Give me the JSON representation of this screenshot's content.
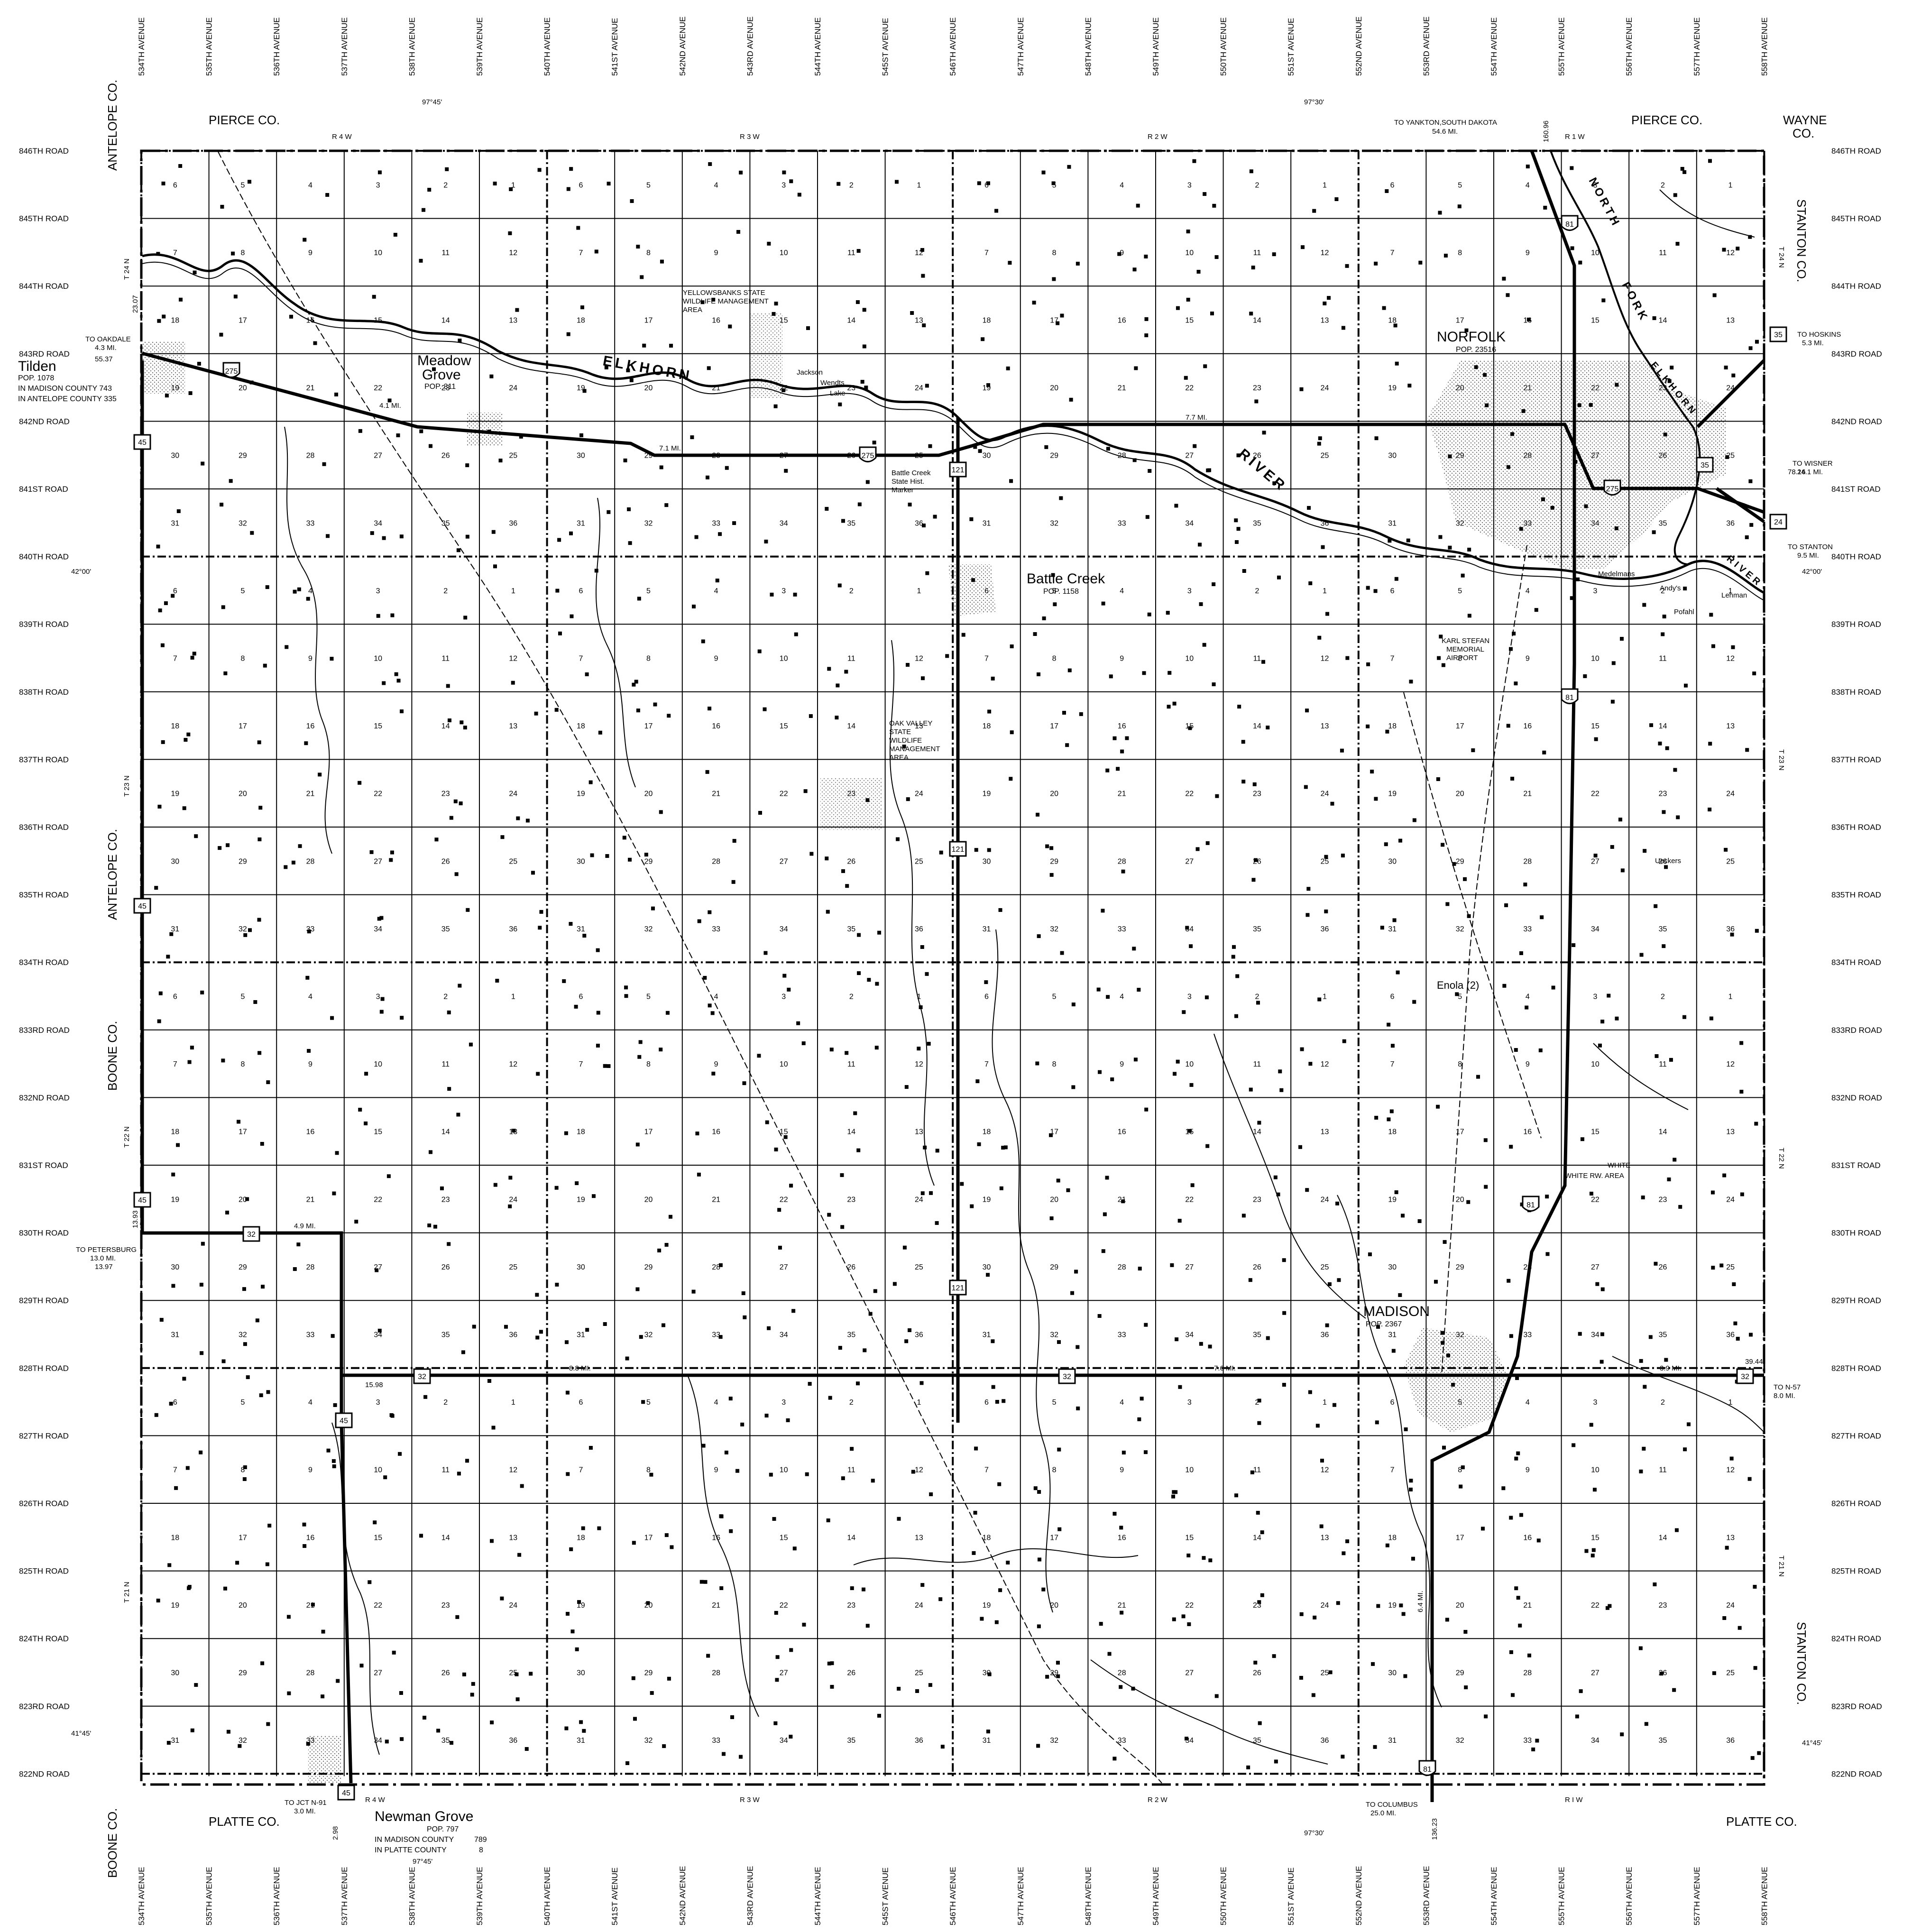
{
  "avenues": [
    "534TH AVENUE",
    "535TH AVENUE",
    "536TH AVENUE",
    "537TH AVENUE",
    "538TH AVENUE",
    "539TH AVENUE",
    "540TH AVENUE",
    "541ST AVENUE",
    "542ND AVENUE",
    "543RD AVENUE",
    "544TH AVENUE",
    "545ST AVENUE",
    "546TH AVENUE",
    "547TH AVENUE",
    "548TH AVENUE",
    "549TH AVENUE",
    "550TH AVENUE",
    "551ST AVENUE",
    "552ND AVENUE",
    "553RD AVENUE",
    "554TH AVENUE",
    "555TH AVENUE",
    "556TH AVENUE",
    "557TH AVENUE",
    "558TH AVENUE"
  ],
  "roads": [
    "846TH ROAD",
    "845TH ROAD",
    "844TH ROAD",
    "843RD ROAD",
    "842ND ROAD",
    "841ST ROAD",
    "840TH ROAD",
    "839TH ROAD",
    "838TH ROAD",
    "837TH ROAD",
    "836TH ROAD",
    "835TH ROAD",
    "834TH ROAD",
    "833RD ROAD",
    "832ND ROAD",
    "831ST ROAD",
    "830TH ROAD",
    "829TH ROAD",
    "828TH ROAD",
    "827TH ROAD",
    "826TH ROAD",
    "825TH ROAD",
    "824TH ROAD",
    "823RD ROAD",
    "822ND ROAD"
  ],
  "sections_odd_row": [
    "6",
    "5",
    "4",
    "3",
    "2",
    "1"
  ],
  "sections_rows": [
    [
      "6",
      "5",
      "4",
      "3",
      "2",
      "1"
    ],
    [
      "7",
      "8",
      "9",
      "10",
      "11",
      "12"
    ],
    [
      "18",
      "17",
      "16",
      "15",
      "14",
      "13"
    ],
    [
      "19",
      "20",
      "21",
      "22",
      "23",
      "24"
    ],
    [
      "30",
      "29",
      "28",
      "27",
      "26",
      "25"
    ],
    [
      "31",
      "32",
      "33",
      "34",
      "35",
      "36"
    ]
  ],
  "counties": {
    "pierce_left": "PIERCE CO.",
    "pierce_right": "PIERCE CO.",
    "wayne": "WAYNE",
    "wayne_co": "CO.",
    "antelope_top": "ANTELOPE CO.",
    "antelope_mid": "ANTELOPE CO.",
    "boone_mid": "BOONE CO.",
    "boone_bot": "BOONE CO.",
    "stanton_top": "STANTON CO.",
    "stanton_bot": "STANTON CO.",
    "platte_left": "PLATTE CO.",
    "platte_right": "PLATTE CO."
  },
  "ranges": {
    "r4w_top": "R 4 W",
    "r3w_top": "R 3 W",
    "r2w_top": "R 2 W",
    "r1w_top": "R 1 W",
    "r4w_bot": "R 4 W",
    "r3w_bot": "R 3 W",
    "r2w_bot": "R 2 W",
    "r1w_bot": "R I W"
  },
  "townships": {
    "t24n_l": "T 24 N",
    "t23n_l": "T 23 N",
    "t22n_l": "T 22 N",
    "t21n_l": "T 21 N",
    "t24n_r": "T 24 N",
    "t23n_r": "T 23 N",
    "t22n_r": "T 22 N",
    "t21n_r": "T 21 N"
  },
  "coords": {
    "lon_9745_top": "97°45'",
    "lon_9730_top": "97°30'",
    "lat_4200_l": "42°00'",
    "lat_4200_r": "42°00'",
    "lat_4145_l": "41°45'",
    "lat_4145_r": "41°45'",
    "lon_9745_bot": "97°45'",
    "lon_9730_bot": "97°30'"
  },
  "towns": {
    "norfolk": {
      "name": "NORFOLK",
      "pop": "POP. 23516"
    },
    "battle_creek": {
      "name": "Battle Creek",
      "pop": "POP. 1158"
    },
    "madison": {
      "name": "MADISON",
      "pop": "POP. 2367"
    },
    "meadow_grove_1": "Meadow",
    "meadow_grove_2": "Grove",
    "meadow_grove_pop": "POP. 311",
    "tilden": "Tilden",
    "tilden_pop": "POP. 1078",
    "tilden_madison": "IN MADISON COUNTY 743",
    "tilden_antelope": "IN ANTELOPE COUNTY 335",
    "newman_grove": "Newman Grove",
    "newman_pop": "POP. 797",
    "newman_madison": "IN MADISON COUNTY",
    "newman_madison_val": "789",
    "newman_platte": "IN PLATTE COUNTY",
    "newman_platte_val": "8",
    "enola": "Enola (2)"
  },
  "rivers": {
    "elkhorn": "ELKHORN",
    "river": "RIVER",
    "north": "NORTH",
    "fork": "FORK",
    "elkhorn2": "ELKHORN",
    "river2": "RIVER"
  },
  "places": {
    "yellowbanks_1": "YELLOWSBANKS STATE",
    "yellowbanks_2": "WILDLIFE MANAGEMENT",
    "yellowbanks_3": "AREA",
    "oak_valley_1": "OAK VALLEY",
    "oak_valley_2": "STATE",
    "oak_valley_3": "WILDLIFE",
    "oak_valley_4": "MANAGEMENT",
    "oak_valley_5": "AREA",
    "airport_1": "KARL STEFAN",
    "airport_2": "MEMORIAL",
    "airport_3": "AIRPORT",
    "jackson_lake": "Jackson",
    "wendts_lake": "Wendts",
    "lake_word": "Lake",
    "battle_creek_hm1": "Battle Creek",
    "battle_creek_hm2": "State Hist.",
    "battle_creek_hm3": "Marker",
    "medelmans": "Medelmans",
    "andys": "Andy's",
    "lehman": "Lehman",
    "pofahl": "Pofahl",
    "ueckers": "Ueckers",
    "white": "WHITE",
    "white_rw": "WHITE RW. AREA"
  },
  "directions": {
    "yankton": "TO YANKTON,SOUTH DAKOTA",
    "yankton_mi": "54.6 MI.",
    "oakdale": "TO OAKDALE",
    "oakdale_mi": "4.3 MI.",
    "hoskins": "TO HOSKINS",
    "hoskins_mi": "5.3 MI.",
    "wisner": "TO WISNER",
    "wisner_mi": "24.1 MI.",
    "stanton": "TO STANTON",
    "stanton_mi": "9.5 MI.",
    "petersburg": "TO PETERSBURG",
    "petersburg_mi": "13.0 MI.",
    "n57": "TO N-57",
    "n57_mi": "8.0 MI.",
    "columbus": "TO COLUMBUS",
    "columbus_mi": "25.0 MI.",
    "jct_n91": "TO JCT N-91",
    "jct_n91_mi": "3.0 MI."
  },
  "distances": {
    "d49": "4.9 MI.",
    "d88": "8.8 MI.",
    "d76": "7.6 MI.",
    "d39": "3.9 MI.",
    "d71": "7.1 MI.",
    "d77": "7.7 MI.",
    "d41": "4.1 MI.",
    "d64": "6.4 MI."
  },
  "highways": {
    "us275": "275",
    "us81": "81",
    "n45": "45",
    "n32": "32",
    "n121": "121",
    "n24": "24",
    "n35": "35"
  },
  "mileposts": {
    "m160": "160.96",
    "m2307": "23.07",
    "m5537": "55.37",
    "m3916": "39.44",
    "m1393": "13.93",
    "m1397": "13.97",
    "m15": "15.98",
    "m2_98": "2.98",
    "m7816": "78.16",
    "m1356": "136.23"
  },
  "colors": {
    "ink": "#000000",
    "paper": "#ffffff",
    "urban": "#dddddd"
  }
}
